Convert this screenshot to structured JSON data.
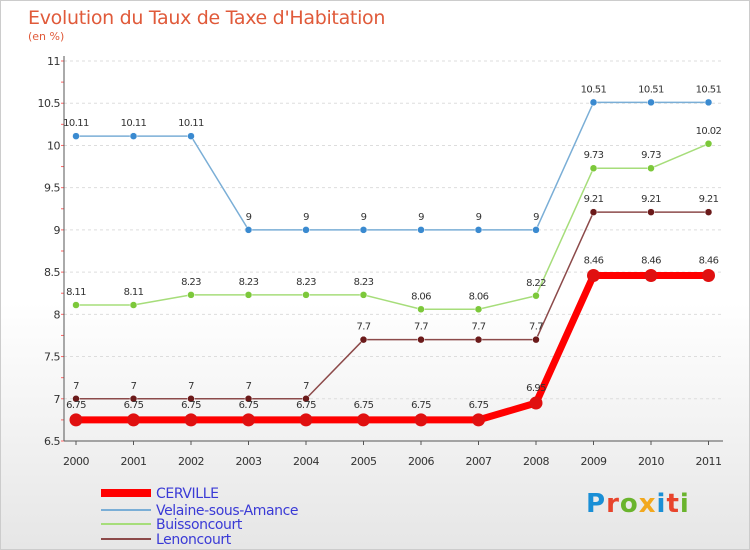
{
  "title": "Evolution du Taux de Taxe d'Habitation",
  "subtitle": "(en %)",
  "logo": {
    "text": "Proxiti",
    "colors": [
      "#1a8fd6",
      "#e8442c",
      "#6ab42d",
      "#f2a81e",
      "#1a8fd6",
      "#e8442c",
      "#6ab42d"
    ]
  },
  "chart_data": {
    "type": "line",
    "x": [
      "2000",
      "2001",
      "2002",
      "2003",
      "2004",
      "2005",
      "2006",
      "2007",
      "2008",
      "2009",
      "2010",
      "2011"
    ],
    "ylim": [
      6.5,
      11
    ],
    "yticks": [
      6.5,
      7,
      7.5,
      8,
      8.5,
      9,
      9.5,
      10,
      10.5,
      11
    ],
    "ytick_labels": [
      "6.5",
      "7",
      "7.5",
      "8",
      "8.5",
      "9",
      "9.5",
      "10",
      "10.5",
      "11"
    ],
    "grid": "horizontal dashed",
    "legend_position": "bottom-left",
    "series": [
      {
        "name": "CERVILLE",
        "color": "#ff0000",
        "marker": "#e01010",
        "width": 7,
        "r": 6.5,
        "values": [
          6.75,
          6.75,
          6.75,
          6.75,
          6.75,
          6.75,
          6.75,
          6.75,
          6.95,
          8.46,
          8.46,
          8.46
        ],
        "labels": [
          "6.75",
          "6.75",
          "6.75",
          "6.75",
          "6.75",
          "6.75",
          "6.75",
          "6.75",
          "6.95",
          "8.46",
          "8.46",
          "8.46"
        ]
      },
      {
        "name": "Velaine-sous-Amance",
        "color": "#7aaed6",
        "marker": "#3a8ad0",
        "width": 1.5,
        "r": 3.5,
        "values": [
          10.11,
          10.11,
          10.11,
          9,
          9,
          9,
          9,
          9,
          9,
          10.51,
          10.51,
          10.51
        ],
        "labels": [
          "10.11",
          "10.11",
          "10.11",
          "9",
          "9",
          "9",
          "9",
          "9",
          "9",
          "10.51",
          "10.51",
          "10.51"
        ]
      },
      {
        "name": "Buissoncourt",
        "color": "#a6dd7a",
        "marker": "#7cc83a",
        "width": 1.5,
        "r": 3.5,
        "values": [
          8.11,
          8.11,
          8.23,
          8.23,
          8.23,
          8.23,
          8.06,
          8.06,
          8.22,
          9.73,
          9.73,
          10.02
        ],
        "labels": [
          "8.11",
          "8.11",
          "8.23",
          "8.23",
          "8.23",
          "8.23",
          "8.06",
          "8.06",
          "8.22",
          "9.73",
          "9.73",
          "10.02"
        ]
      },
      {
        "name": "Lenoncourt",
        "color": "#8c4a4a",
        "marker": "#6b1a1a",
        "width": 1.5,
        "r": 3.5,
        "values": [
          7,
          7,
          7,
          7,
          7,
          7.7,
          7.7,
          7.7,
          7.7,
          9.21,
          9.21,
          9.21
        ],
        "labels": [
          "7",
          "7",
          "7",
          "7",
          "7",
          "7.7",
          "7.7",
          "7.7",
          "7.7",
          "9.21",
          "9.21",
          "9.21"
        ]
      }
    ]
  }
}
